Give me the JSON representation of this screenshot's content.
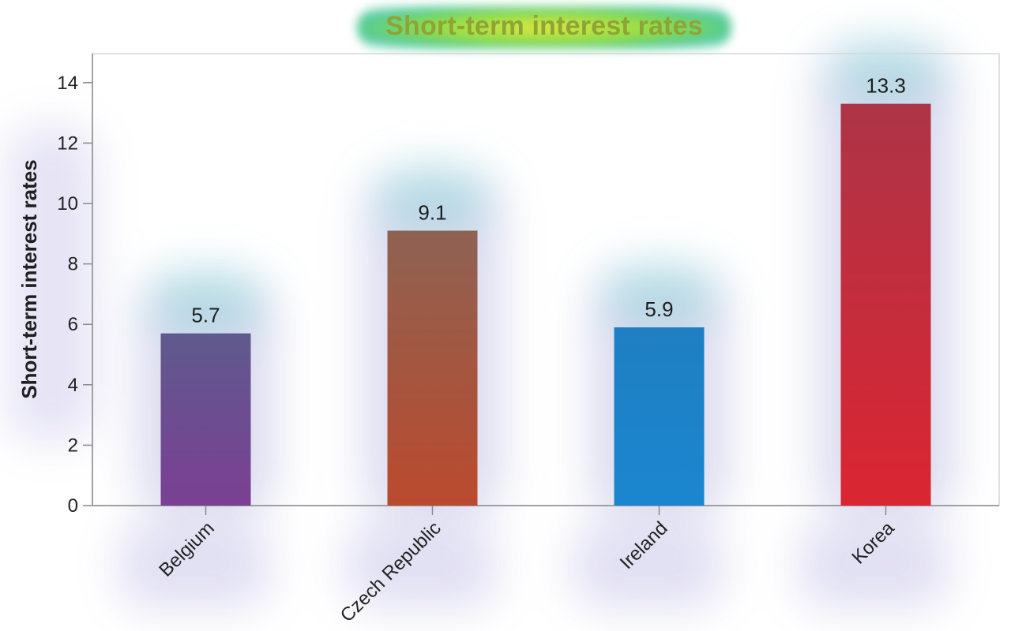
{
  "chart_data": {
    "type": "bar",
    "title": "Short-term interest rates",
    "ylabel": "Short-term interest rates",
    "xlabel": "",
    "categories": [
      "Belgium",
      "Czech Republic",
      "Ireland",
      "Korea"
    ],
    "values": [
      5.7,
      9.1,
      5.9,
      13.3
    ],
    "value_labels": [
      "5.7",
      "9.1",
      "5.9",
      "13.3"
    ],
    "ylim": [
      0,
      15
    ],
    "yticks": [
      0,
      2,
      4,
      6,
      8,
      10,
      12,
      14
    ],
    "grid": false,
    "legend": "none",
    "colors": [
      {
        "top": "#5f5a8e",
        "bottom": "#7b3f93"
      },
      {
        "top": "#8e6252",
        "bottom": "#bb4a2e"
      },
      {
        "top": "#1f7fc2",
        "bottom": "#1b86cf"
      },
      {
        "top": "#ad3447",
        "bottom": "#db2532"
      }
    ]
  }
}
